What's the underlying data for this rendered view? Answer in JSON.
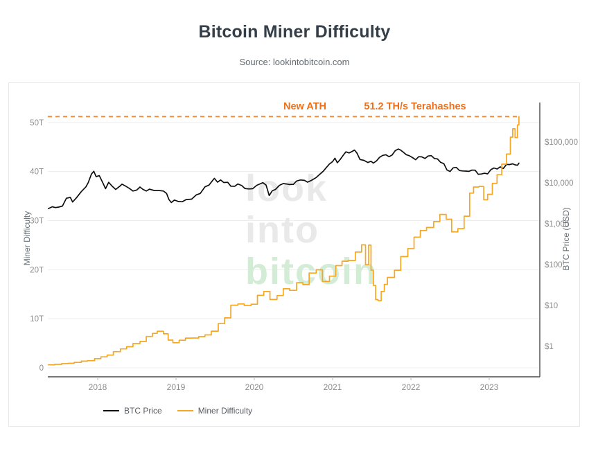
{
  "header": {
    "title": "Bitcoin Miner Difficulty",
    "source": "Source: lookintobitcoin.com"
  },
  "annotation": {
    "label": "New ATH",
    "value": "51.2 TH/s Terahashes",
    "ath_value_terahashes": 51.2,
    "text_color": "#ed7019",
    "line_color": "#f08c3c"
  },
  "watermark": {
    "lines": [
      "look",
      "into",
      "bitcoin"
    ],
    "gray_color": "#e9e9e9",
    "green_color": "#d3ecd5"
  },
  "chart_data": {
    "type": "line",
    "title": "Bitcoin Miner Difficulty",
    "grid": "horizontal-only",
    "legend_position": "bottom-left",
    "x_axis": {
      "range": [
        2017.33,
        2023.47
      ],
      "ticks": [
        2018,
        2019,
        2020,
        2021,
        2022,
        2023
      ]
    },
    "y_left": {
      "label": "Miner Difficulty",
      "scale": "linear",
      "range": [
        0,
        56.6
      ],
      "unit": "T",
      "ticks": [
        [
          0,
          "0"
        ],
        [
          10,
          "10T"
        ],
        [
          20,
          "20T"
        ],
        [
          30,
          "30T"
        ],
        [
          40,
          "40T"
        ],
        [
          50,
          "50T"
        ]
      ]
    },
    "y_right": {
      "label": "BTC Price (USD)",
      "scale": "log",
      "range": [
        0.35,
        520000
      ],
      "ticks": [
        [
          1,
          "$1"
        ],
        [
          10,
          "$10"
        ],
        [
          100,
          "$100"
        ],
        [
          1000,
          "$1,000"
        ],
        [
          10000,
          "$10,000"
        ],
        [
          100000,
          "$100,000"
        ]
      ]
    },
    "series": [
      {
        "name": "BTC Price",
        "axis": "right",
        "color": "#0e0e0e",
        "step": false,
        "points": [
          [
            2017.37,
            2350
          ],
          [
            2017.42,
            2600
          ],
          [
            2017.46,
            2480
          ],
          [
            2017.5,
            2550
          ],
          [
            2017.55,
            2700
          ],
          [
            2017.6,
            4200
          ],
          [
            2017.65,
            4400
          ],
          [
            2017.68,
            3400
          ],
          [
            2017.73,
            4350
          ],
          [
            2017.79,
            6100
          ],
          [
            2017.85,
            8000
          ],
          [
            2017.88,
            10200
          ],
          [
            2017.92,
            16500
          ],
          [
            2017.95,
            19200
          ],
          [
            2017.98,
            14200
          ],
          [
            2018.02,
            15000
          ],
          [
            2018.06,
            10500
          ],
          [
            2018.1,
            7200
          ],
          [
            2018.14,
            10300
          ],
          [
            2018.18,
            8500
          ],
          [
            2018.23,
            6900
          ],
          [
            2018.28,
            8200
          ],
          [
            2018.31,
            9300
          ],
          [
            2018.35,
            8500
          ],
          [
            2018.4,
            7400
          ],
          [
            2018.45,
            6300
          ],
          [
            2018.5,
            6700
          ],
          [
            2018.54,
            7900
          ],
          [
            2018.58,
            6900
          ],
          [
            2018.62,
            6300
          ],
          [
            2018.66,
            7000
          ],
          [
            2018.72,
            6500
          ],
          [
            2018.78,
            6500
          ],
          [
            2018.84,
            6300
          ],
          [
            2018.88,
            5500
          ],
          [
            2018.91,
            3900
          ],
          [
            2018.94,
            3300
          ],
          [
            2018.98,
            3800
          ],
          [
            2019.03,
            3500
          ],
          [
            2019.08,
            3450
          ],
          [
            2019.13,
            3900
          ],
          [
            2019.2,
            4000
          ],
          [
            2019.26,
            5100
          ],
          [
            2019.31,
            5500
          ],
          [
            2019.37,
            8000
          ],
          [
            2019.42,
            8800
          ],
          [
            2019.46,
            11000
          ],
          [
            2019.49,
            12900
          ],
          [
            2019.53,
            10400
          ],
          [
            2019.57,
            11800
          ],
          [
            2019.61,
            10200
          ],
          [
            2019.66,
            10300
          ],
          [
            2019.7,
            8300
          ],
          [
            2019.75,
            8250
          ],
          [
            2019.79,
            9400
          ],
          [
            2019.84,
            8600
          ],
          [
            2019.88,
            7300
          ],
          [
            2019.93,
            7100
          ],
          [
            2019.98,
            7200
          ],
          [
            2020.03,
            8700
          ],
          [
            2020.07,
            9400
          ],
          [
            2020.11,
            10100
          ],
          [
            2020.15,
            8800
          ],
          [
            2020.19,
            4900
          ],
          [
            2020.23,
            6400
          ],
          [
            2020.27,
            6900
          ],
          [
            2020.32,
            8700
          ],
          [
            2020.37,
            9600
          ],
          [
            2020.41,
            9400
          ],
          [
            2020.45,
            9100
          ],
          [
            2020.5,
            9200
          ],
          [
            2020.54,
            11100
          ],
          [
            2020.59,
            11800
          ],
          [
            2020.64,
            11500
          ],
          [
            2020.68,
            10400
          ],
          [
            2020.73,
            11500
          ],
          [
            2020.79,
            13500
          ],
          [
            2020.84,
            16500
          ],
          [
            2020.88,
            19200
          ],
          [
            2020.92,
            23800
          ],
          [
            2020.96,
            29000
          ],
          [
            2021.0,
            33100
          ],
          [
            2021.03,
            40200
          ],
          [
            2021.06,
            31000
          ],
          [
            2021.1,
            38000
          ],
          [
            2021.14,
            48600
          ],
          [
            2021.17,
            57500
          ],
          [
            2021.21,
            54000
          ],
          [
            2021.25,
            58900
          ],
          [
            2021.28,
            63500
          ],
          [
            2021.31,
            54000
          ],
          [
            2021.35,
            37300
          ],
          [
            2021.4,
            35500
          ],
          [
            2021.45,
            31500
          ],
          [
            2021.49,
            33800
          ],
          [
            2021.52,
            30500
          ],
          [
            2021.56,
            34500
          ],
          [
            2021.6,
            42200
          ],
          [
            2021.64,
            47100
          ],
          [
            2021.68,
            48800
          ],
          [
            2021.72,
            43800
          ],
          [
            2021.76,
            48000
          ],
          [
            2021.8,
            61300
          ],
          [
            2021.84,
            67500
          ],
          [
            2021.87,
            63000
          ],
          [
            2021.9,
            57000
          ],
          [
            2021.94,
            49000
          ],
          [
            2021.98,
            46200
          ],
          [
            2022.02,
            41500
          ],
          [
            2022.06,
            36800
          ],
          [
            2022.1,
            43800
          ],
          [
            2022.14,
            43200
          ],
          [
            2022.18,
            39500
          ],
          [
            2022.22,
            45500
          ],
          [
            2022.26,
            46400
          ],
          [
            2022.3,
            39500
          ],
          [
            2022.34,
            38500
          ],
          [
            2022.38,
            31800
          ],
          [
            2022.42,
            29500
          ],
          [
            2022.46,
            20700
          ],
          [
            2022.5,
            19000
          ],
          [
            2022.54,
            23300
          ],
          [
            2022.58,
            23900
          ],
          [
            2022.62,
            20000
          ],
          [
            2022.66,
            19600
          ],
          [
            2022.7,
            19400
          ],
          [
            2022.74,
            19100
          ],
          [
            2022.78,
            20500
          ],
          [
            2022.82,
            20400
          ],
          [
            2022.86,
            16200
          ],
          [
            2022.9,
            16500
          ],
          [
            2022.94,
            17200
          ],
          [
            2022.98,
            16600
          ],
          [
            2023.02,
            21000
          ],
          [
            2023.06,
            23100
          ],
          [
            2023.1,
            21800
          ],
          [
            2023.14,
            24600
          ],
          [
            2023.18,
            22400
          ],
          [
            2023.22,
            28300
          ],
          [
            2023.26,
            28000
          ],
          [
            2023.3,
            29300
          ],
          [
            2023.33,
            27600
          ],
          [
            2023.36,
            26900
          ],
          [
            2023.38,
            30400
          ]
        ]
      },
      {
        "name": "Miner Difficulty",
        "axis": "left",
        "color": "#f5a623",
        "step": true,
        "points": [
          [
            2017.37,
            0.6
          ],
          [
            2017.45,
            0.71
          ],
          [
            2017.54,
            0.84
          ],
          [
            2017.62,
            0.92
          ],
          [
            2017.7,
            1.1
          ],
          [
            2017.79,
            1.35
          ],
          [
            2017.87,
            1.45
          ],
          [
            2017.96,
            1.87
          ],
          [
            2018.04,
            2.23
          ],
          [
            2018.12,
            2.6
          ],
          [
            2018.2,
            3.29
          ],
          [
            2018.29,
            3.85
          ],
          [
            2018.37,
            4.31
          ],
          [
            2018.45,
            4.94
          ],
          [
            2018.54,
            5.36
          ],
          [
            2018.62,
            6.39
          ],
          [
            2018.7,
            7.02
          ],
          [
            2018.76,
            7.45
          ],
          [
            2018.84,
            6.93
          ],
          [
            2018.9,
            5.65
          ],
          [
            2018.96,
            5.11
          ],
          [
            2019.04,
            5.62
          ],
          [
            2019.12,
            6.06
          ],
          [
            2019.2,
            6.07
          ],
          [
            2019.29,
            6.35
          ],
          [
            2019.37,
            6.7
          ],
          [
            2019.45,
            7.46
          ],
          [
            2019.54,
            9.01
          ],
          [
            2019.62,
            10.18
          ],
          [
            2019.7,
            12.76
          ],
          [
            2019.79,
            13.01
          ],
          [
            2019.87,
            12.72
          ],
          [
            2019.96,
            12.95
          ],
          [
            2020.04,
            14.78
          ],
          [
            2020.12,
            15.55
          ],
          [
            2020.2,
            13.91
          ],
          [
            2020.29,
            14.72
          ],
          [
            2020.37,
            16.1
          ],
          [
            2020.45,
            15.78
          ],
          [
            2020.54,
            17.35
          ],
          [
            2020.62,
            16.95
          ],
          [
            2020.7,
            19.31
          ],
          [
            2020.79,
            19.97
          ],
          [
            2020.87,
            17.6
          ],
          [
            2020.96,
            18.67
          ],
          [
            2021.04,
            20.82
          ],
          [
            2021.12,
            21.72
          ],
          [
            2021.2,
            21.87
          ],
          [
            2021.29,
            23.58
          ],
          [
            2021.37,
            25.05
          ],
          [
            2021.42,
            21.0
          ],
          [
            2021.46,
            25.0
          ],
          [
            2021.49,
            19.9
          ],
          [
            2021.52,
            16.8
          ],
          [
            2021.55,
            13.9
          ],
          [
            2021.58,
            13.67
          ],
          [
            2021.62,
            15.56
          ],
          [
            2021.66,
            17.0
          ],
          [
            2021.7,
            18.42
          ],
          [
            2021.79,
            19.89
          ],
          [
            2021.87,
            22.67
          ],
          [
            2021.96,
            24.27
          ],
          [
            2022.04,
            26.64
          ],
          [
            2022.12,
            27.97
          ],
          [
            2022.2,
            28.59
          ],
          [
            2022.29,
            29.79
          ],
          [
            2022.37,
            31.25
          ],
          [
            2022.45,
            30.28
          ],
          [
            2022.52,
            27.69
          ],
          [
            2022.6,
            28.35
          ],
          [
            2022.68,
            30.9
          ],
          [
            2022.75,
            35.6
          ],
          [
            2022.8,
            36.84
          ],
          [
            2022.87,
            36.95
          ],
          [
            2022.93,
            34.24
          ],
          [
            2022.98,
            35.36
          ],
          [
            2023.04,
            37.59
          ],
          [
            2023.1,
            39.35
          ],
          [
            2023.16,
            41.5
          ],
          [
            2023.22,
            43.55
          ],
          [
            2023.27,
            47.0
          ],
          [
            2023.3,
            48.71
          ],
          [
            2023.33,
            46.9
          ],
          [
            2023.36,
            49.5
          ],
          [
            2023.38,
            51.2
          ]
        ]
      }
    ]
  },
  "legend": {
    "items": [
      {
        "label": "BTC Price",
        "color": "#0e0e0e"
      },
      {
        "label": "Miner Difficulty",
        "color": "#f5a623"
      }
    ]
  }
}
